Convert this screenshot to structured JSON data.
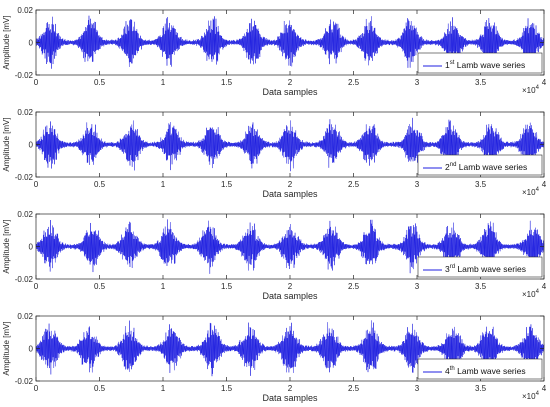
{
  "figure": {
    "wave_color": "#1f1fe0",
    "axis_color": "#262626",
    "grid_color": "#dcdcdc",
    "exponent_base": "×10",
    "exponent_power": "4"
  },
  "chart_data": [
    {
      "type": "line",
      "xlabel": "Data samples",
      "ylabel": "Amplitude [mV]",
      "xlim": [
        0,
        40000
      ],
      "ylim": [
        -0.02,
        0.02
      ],
      "x_ticks": [
        0,
        0.5,
        1,
        1.5,
        2,
        2.5,
        3,
        3.5,
        4
      ],
      "x_multiplier": "×10^4",
      "y_ticks": [
        "-0.02",
        "0",
        "0.02"
      ],
      "y_tick_values": [
        -0.02,
        0,
        0.02
      ],
      "grid": false,
      "legend_location": "bottom-right",
      "series": [
        {
          "name_prefix": "1",
          "name_sup": "st",
          "name_suffix": "Lamb wave series"
        }
      ],
      "seed": 11,
      "amplitude_peak": 0.0175
    },
    {
      "type": "line",
      "xlabel": "Data samples",
      "ylabel": "Amplitude [mV]",
      "xlim": [
        0,
        40000
      ],
      "ylim": [
        -0.02,
        0.02
      ],
      "x_ticks": [
        0,
        0.5,
        1,
        1.5,
        2,
        2.5,
        3,
        3.5,
        4
      ],
      "x_multiplier": "×10^4",
      "y_ticks": [
        "-0.02",
        "0",
        "0.02"
      ],
      "y_tick_values": [
        -0.02,
        0,
        0.02
      ],
      "grid": false,
      "legend_location": "bottom-right",
      "series": [
        {
          "name_prefix": "2",
          "name_sup": "nd",
          "name_suffix": "Lamb wave series"
        }
      ],
      "seed": 23,
      "amplitude_peak": 0.0165
    },
    {
      "type": "line",
      "xlabel": "Data samples",
      "ylabel": "Amplitude [mV]",
      "xlim": [
        0,
        40000
      ],
      "ylim": [
        -0.02,
        0.02
      ],
      "x_ticks": [
        0,
        0.5,
        1,
        1.5,
        2,
        2.5,
        3,
        3.5,
        4
      ],
      "x_multiplier": "×10^4",
      "y_ticks": [
        "-0.02",
        "0",
        "0.02"
      ],
      "y_tick_values": [
        -0.02,
        0,
        0.02
      ],
      "grid": false,
      "legend_location": "bottom-right",
      "series": [
        {
          "name_prefix": "3",
          "name_sup": "rd",
          "name_suffix": "Lamb wave series"
        }
      ],
      "seed": 37,
      "amplitude_peak": 0.017
    },
    {
      "type": "line",
      "xlabel": "Data samples",
      "ylabel": "Amplitude [mV]",
      "xlim": [
        0,
        40000
      ],
      "ylim": [
        -0.02,
        0.02
      ],
      "x_ticks": [
        0,
        0.5,
        1,
        1.5,
        2,
        2.5,
        3,
        3.5,
        4
      ],
      "x_multiplier": "×10^4",
      "y_ticks": [
        "-0.02",
        "0",
        "0.02"
      ],
      "y_tick_values": [
        -0.02,
        0,
        0.02
      ],
      "grid": false,
      "legend_location": "bottom-right",
      "series": [
        {
          "name_prefix": "4",
          "name_sup": "th",
          "name_suffix": "Lamb wave series"
        }
      ],
      "seed": 53,
      "amplitude_peak": 0.018
    }
  ]
}
